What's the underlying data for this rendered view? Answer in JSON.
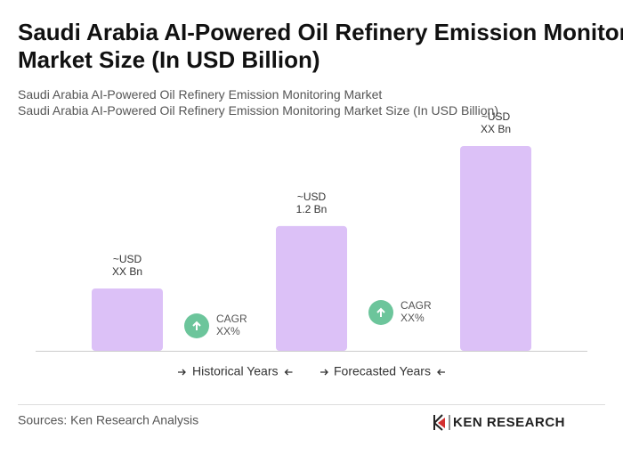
{
  "chart_data": {
    "type": "bar",
    "title": "Saudi Arabia AI-Powered Oil Refinery Emission Monitoring Market Size (In USD Billion)",
    "subtitle": "Saudi Arabia AI-Powered Oil Refinery Emission Monitoring Market",
    "subtitle2": "Saudi Arabia AI-Powered Oil Refinery Emission Monitoring Market Size (In USD Billion)",
    "values": [
      0.6,
      1.2,
      1.97
    ],
    "value_labels": [
      "~USD\nXX Bn",
      "~USD\n1.2 Bn",
      "~USD\nXX Bn"
    ],
    "color": "#dcc1f7",
    "annotations": [
      {
        "label": "CAGR",
        "value": "XX%"
      },
      {
        "label": "CAGR",
        "value": "XX%"
      }
    ],
    "legend": [
      "Historical Years",
      "Forecasted Years"
    ]
  },
  "source": "Sources: Ken Research Analysis",
  "logo": "KEN RESEARCH"
}
